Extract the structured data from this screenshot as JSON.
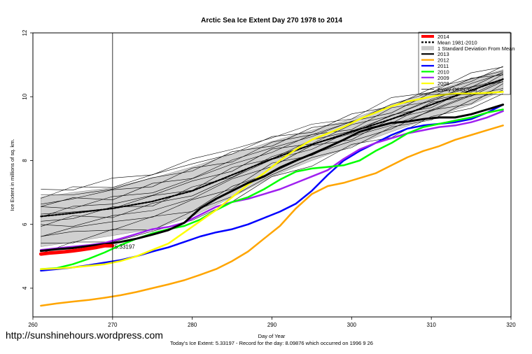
{
  "chart_data": {
    "type": "line",
    "title": "Arctic Sea Ice Extent Day 270 1978 to 2014",
    "xlabel": "Day of Year",
    "ylabel": "Ice Extent in millions of sq. km.",
    "xlim": [
      260,
      320
    ],
    "ylim": [
      3.1,
      12
    ],
    "x_ticks": [
      260,
      270,
      280,
      290,
      300,
      310,
      320
    ],
    "y_ticks": [
      4,
      6,
      8,
      10,
      12
    ],
    "grid": false,
    "legend_position": "top-right",
    "current_day_marker": 270,
    "current_value_label": "5.33197",
    "legend": [
      {
        "label": "2014",
        "color": "#ff0000",
        "style": "thick"
      },
      {
        "label": "Mean 1981-2010",
        "color": "#000000",
        "style": "dashed"
      },
      {
        "label": "1 Standard Deviation From Mean",
        "color": "#c8c8c8",
        "style": "band"
      },
      {
        "label": "2013",
        "color": "#000000",
        "style": "line"
      },
      {
        "label": "2012",
        "color": "#ffa500",
        "style": "line"
      },
      {
        "label": "2011",
        "color": "#0000ff",
        "style": "line"
      },
      {
        "label": "2010",
        "color": "#00ff00",
        "style": "line"
      },
      {
        "label": "2009",
        "color": "#a020f0",
        "style": "line"
      },
      {
        "label": "2008",
        "color": "#ffff00",
        "style": "line"
      },
      {
        "label": "Every Other Year",
        "color": "#000000",
        "style": "thin"
      }
    ],
    "std_band": {
      "x": [
        261,
        265,
        270,
        275,
        280,
        285,
        290,
        295,
        300,
        305,
        310,
        315,
        319
      ],
      "upper": [
        6.85,
        7.0,
        7.15,
        7.45,
        7.8,
        8.2,
        8.6,
        8.95,
        9.3,
        9.75,
        10.15,
        10.55,
        10.85
      ],
      "lower": [
        5.3,
        5.45,
        5.65,
        5.85,
        6.25,
        6.85,
        7.5,
        8.0,
        8.45,
        8.9,
        9.35,
        9.75,
        10.2
      ]
    },
    "series": [
      {
        "name": "Mean 1981-2010",
        "color": "#000000",
        "width": 2.2,
        "dash": "3,2",
        "x": [
          261,
          265,
          270,
          275,
          280,
          285,
          290,
          295,
          300,
          305,
          310,
          315,
          319
        ],
        "values": [
          6.25,
          6.35,
          6.5,
          6.72,
          7.05,
          7.55,
          8.05,
          8.5,
          8.9,
          9.3,
          9.75,
          10.2,
          10.55
        ]
      },
      {
        "name": "2013",
        "color": "#000000",
        "width": 3,
        "x": [
          261,
          263,
          265,
          267,
          269,
          271,
          273,
          275,
          277,
          279,
          281,
          283,
          285,
          287,
          289,
          291,
          293,
          295,
          297,
          299,
          301,
          303,
          305,
          307,
          309,
          311,
          313,
          315,
          317,
          319
        ],
        "values": [
          5.17,
          5.22,
          5.26,
          5.32,
          5.38,
          5.45,
          5.55,
          5.68,
          5.82,
          6.05,
          6.5,
          6.8,
          7.05,
          7.3,
          7.5,
          7.78,
          8.0,
          8.2,
          8.42,
          8.65,
          8.9,
          9.05,
          9.18,
          9.22,
          9.3,
          9.35,
          9.35,
          9.45,
          9.6,
          9.75
        ]
      },
      {
        "name": "2012",
        "color": "#ffa500",
        "width": 2.5,
        "x": [
          261,
          263,
          265,
          267,
          269,
          271,
          273,
          275,
          277,
          279,
          281,
          283,
          285,
          287,
          289,
          291,
          293,
          295,
          297,
          299,
          301,
          303,
          305,
          307,
          309,
          311,
          313,
          315,
          317,
          319
        ],
        "values": [
          3.45,
          3.52,
          3.58,
          3.63,
          3.7,
          3.78,
          3.88,
          4.0,
          4.12,
          4.25,
          4.42,
          4.6,
          4.85,
          5.15,
          5.55,
          5.95,
          6.5,
          6.95,
          7.2,
          7.3,
          7.45,
          7.6,
          7.85,
          8.1,
          8.3,
          8.45,
          8.65,
          8.8,
          8.95,
          9.1
        ]
      },
      {
        "name": "2011",
        "color": "#0000ff",
        "width": 2.5,
        "x": [
          261,
          263,
          265,
          267,
          269,
          271,
          273,
          275,
          277,
          279,
          281,
          283,
          285,
          287,
          289,
          291,
          293,
          295,
          297,
          299,
          301,
          303,
          305,
          307,
          309,
          311,
          313,
          315,
          317,
          319
        ],
        "values": [
          4.55,
          4.6,
          4.65,
          4.72,
          4.8,
          4.88,
          5.0,
          5.15,
          5.28,
          5.45,
          5.62,
          5.75,
          5.85,
          6.0,
          6.2,
          6.4,
          6.65,
          7.05,
          7.55,
          8.0,
          8.3,
          8.55,
          8.8,
          9.0,
          9.1,
          9.15,
          9.2,
          9.3,
          9.5,
          9.75
        ]
      },
      {
        "name": "2010",
        "color": "#00ff00",
        "width": 2.5,
        "x": [
          261,
          263,
          265,
          267,
          269,
          271,
          273,
          275,
          277,
          279,
          281,
          283,
          285,
          287,
          289,
          291,
          293,
          295,
          297,
          299,
          301,
          303,
          305,
          307,
          309,
          311,
          313,
          315,
          317,
          319
        ],
        "values": [
          4.6,
          4.63,
          4.75,
          4.92,
          5.12,
          5.35,
          5.55,
          5.72,
          5.85,
          5.95,
          6.15,
          6.45,
          6.7,
          6.85,
          7.1,
          7.4,
          7.65,
          7.75,
          7.8,
          7.85,
          8.0,
          8.3,
          8.55,
          8.85,
          9.05,
          9.15,
          9.25,
          9.35,
          9.5,
          9.6
        ]
      },
      {
        "name": "2009",
        "color": "#a020f0",
        "width": 2.5,
        "x": [
          261,
          263,
          265,
          267,
          269,
          271,
          273,
          275,
          277,
          279,
          281,
          283,
          285,
          287,
          289,
          291,
          293,
          295,
          297,
          299,
          301,
          303,
          305,
          307,
          309,
          311,
          313,
          315,
          317,
          319
        ],
        "values": [
          5.2,
          5.25,
          5.3,
          5.35,
          5.42,
          5.55,
          5.7,
          5.85,
          5.92,
          6.05,
          6.3,
          6.55,
          6.7,
          6.8,
          6.95,
          7.1,
          7.3,
          7.5,
          7.7,
          8.05,
          8.35,
          8.55,
          8.7,
          8.85,
          8.95,
          9.05,
          9.1,
          9.2,
          9.35,
          9.55
        ]
      },
      {
        "name": "2008",
        "color": "#ffff00",
        "width": 2.5,
        "x": [
          261,
          263,
          265,
          267,
          269,
          271,
          273,
          275,
          277,
          279,
          281,
          283,
          285,
          287,
          289,
          291,
          293,
          295,
          297,
          299,
          301,
          303,
          305,
          307,
          309,
          311,
          313,
          315,
          317,
          319
        ],
        "values": [
          4.6,
          4.62,
          4.65,
          4.7,
          4.75,
          4.85,
          5.0,
          5.2,
          5.4,
          5.75,
          6.1,
          6.45,
          6.85,
          7.25,
          7.6,
          8.0,
          8.35,
          8.65,
          8.85,
          9.05,
          9.3,
          9.5,
          9.7,
          9.85,
          9.95,
          10.05,
          10.1,
          10.1,
          10.12,
          10.15
        ]
      },
      {
        "name": "2014",
        "color": "#ff0000",
        "width": 5,
        "x": [
          261,
          262,
          263,
          264,
          265,
          266,
          267,
          268,
          269,
          270
        ],
        "values": [
          5.07,
          5.1,
          5.12,
          5.14,
          5.17,
          5.2,
          5.24,
          5.28,
          5.33,
          5.33
        ]
      }
    ]
  },
  "watermark_url": "http://sunshinehours.wordpress.com",
  "footer": "Today's Ice Extent: 5.33197  - Record for the day: 8.09876 which occurred on 1996 9 26"
}
